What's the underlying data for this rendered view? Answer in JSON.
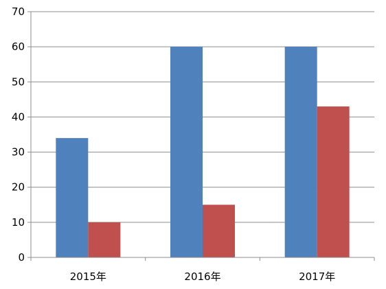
{
  "chart_data": {
    "type": "bar",
    "title": "",
    "xlabel": "",
    "ylabel": "",
    "categories": [
      "2015年",
      "2016年",
      "2017年"
    ],
    "series": [
      {
        "values": [
          34,
          60,
          60
        ],
        "color": "#4F81BD"
      },
      {
        "values": [
          10,
          15,
          43
        ],
        "color": "#C0504D"
      }
    ],
    "ylim": [
      0,
      70
    ],
    "yticks": [
      0,
      10,
      20,
      30,
      40,
      50,
      60,
      70
    ],
    "grid": true,
    "legend": "none"
  }
}
